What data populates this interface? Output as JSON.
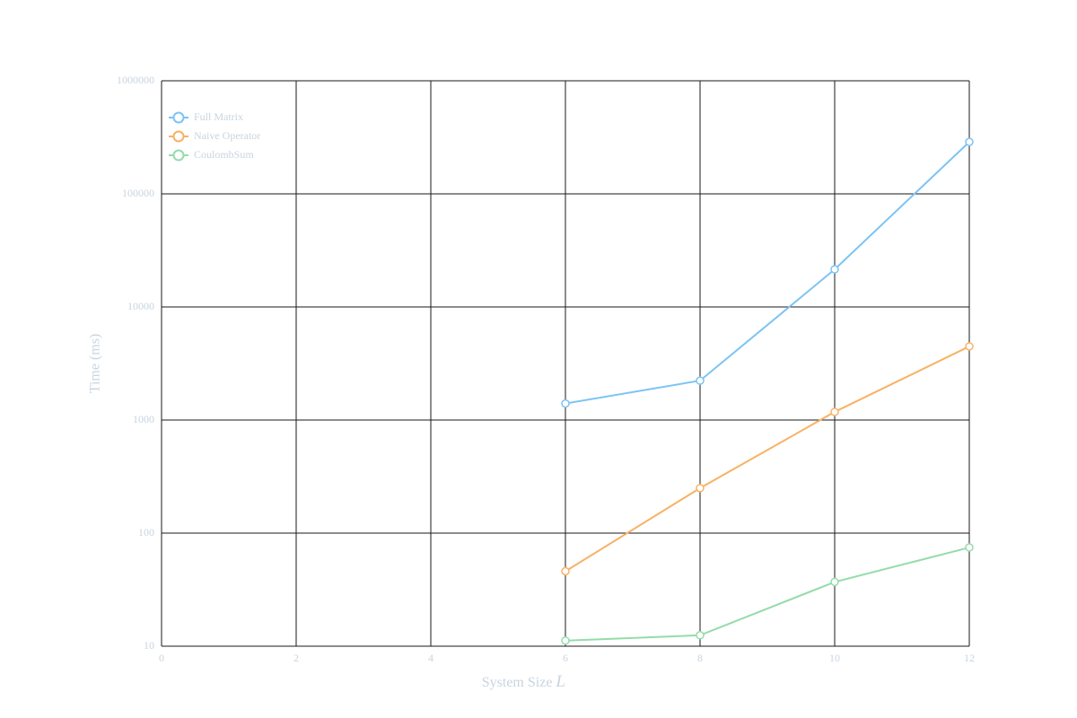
{
  "chart_data": {
    "type": "line",
    "xlabel": "System Size",
    "xlabel_symbol": "L",
    "ylabel": "Time (ms)",
    "x": [
      6,
      8,
      10,
      12
    ],
    "series": [
      {
        "name": "Full Matrix",
        "color": "#7cc4f4",
        "values": [
          1400,
          2230,
          21500,
          288000
        ]
      },
      {
        "name": "Naive Operator",
        "color": "#f8b266",
        "values": [
          46,
          250,
          1180,
          4480
        ]
      },
      {
        "name": "CoulombSum",
        "color": "#94dcaa",
        "values": [
          11.2,
          12.5,
          37,
          74.6
        ]
      }
    ],
    "xlim": [
      0,
      12
    ],
    "xticks": [
      0,
      2,
      4,
      6,
      8,
      10,
      12
    ],
    "ylim": [
      10,
      1000000
    ],
    "yticks": [
      10,
      100,
      1000,
      10000,
      100000,
      1000000
    ],
    "log_y": true,
    "grid": true,
    "legend": "upper left"
  }
}
